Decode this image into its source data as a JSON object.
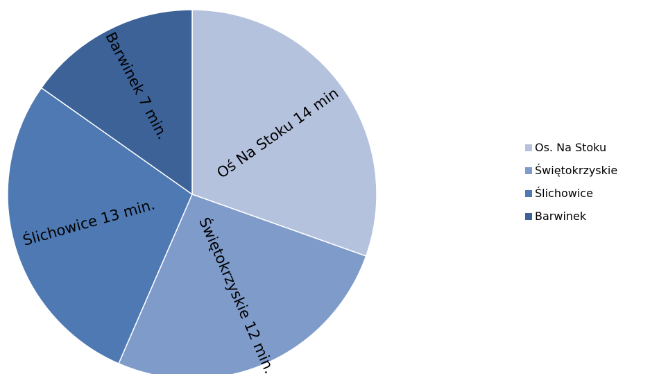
{
  "chart_data": {
    "type": "pie",
    "categories": [
      "Os. Na Stoku",
      "Świętokrzyskie",
      "Ślichowice",
      "Barwinek"
    ],
    "values": [
      14,
      12,
      13,
      7
    ],
    "units": "min",
    "slice_labels": [
      "Oś Na Stoku 14 min",
      "Świętokrzyskie 12 min.",
      "Ślichowice 13 min.",
      "Barwinek 7 min."
    ],
    "colors": [
      "#B4C2DE",
      "#7E9BCA",
      "#4E79B3",
      "#3C6298"
    ],
    "start_angle_deg": 0,
    "direction": "clockwise",
    "legend_position": "right",
    "title": ""
  }
}
